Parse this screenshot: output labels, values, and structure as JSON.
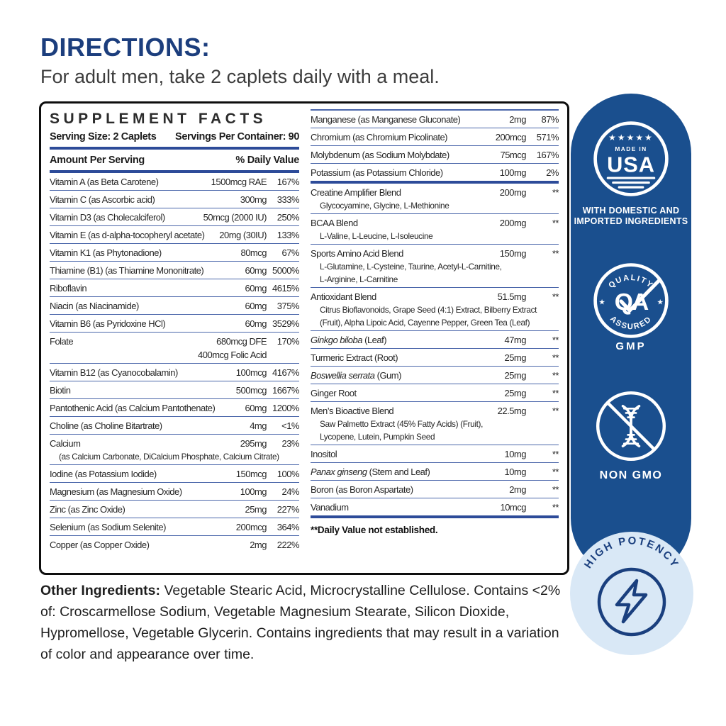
{
  "directions": {
    "title": "DIRECTIONS:",
    "text": "For adult men, take 2 caplets daily with a meal."
  },
  "facts": {
    "title": "SUPPLEMENT FACTS",
    "serving_size": "Serving Size: 2 Caplets",
    "servings_per_container": "Servings Per Container: 90",
    "col_amount": "Amount Per Serving",
    "col_dv": "% Daily Value",
    "footnote": "**Daily Value not established.",
    "left_rows": [
      {
        "label": "Vitamin A (as Beta Carotene)",
        "amount": "1500mcg RAE",
        "dv": "167%"
      },
      {
        "label": "Vitamin C (as Ascorbic acid)",
        "amount": "300mg",
        "dv": "333%"
      },
      {
        "label": "Vitamin D3 (as Cholecalciferol)",
        "amount": "50mcg (2000 IU)",
        "dv": "250%"
      },
      {
        "label": "Vitamin E (as d-alpha-tocopheryl acetate)",
        "amount": "20mg (30IU)",
        "dv": "133%"
      },
      {
        "label": "Vitamin K1 (as Phytonadione)",
        "amount": "80mcg",
        "dv": "67%"
      },
      {
        "label": "Thiamine (B1) (as Thiamine Mononitrate)",
        "amount": "60mg",
        "dv": "5000%"
      },
      {
        "label": "Riboflavin",
        "amount": "60mg",
        "dv": "4615%"
      },
      {
        "label": "Niacin (as Niacinamide)",
        "amount": "60mg",
        "dv": "375%"
      },
      {
        "label": "Vitamin B6 (as Pyridoxine HCl)",
        "amount": "60mg",
        "dv": "3529%"
      },
      {
        "label": "Folate",
        "amount": "680mcg DFE",
        "amount2": "400mcg Folic Acid",
        "dv": "170%"
      },
      {
        "label": "Vitamin B12 (as Cyanocobalamin)",
        "amount": "100mcg",
        "dv": "4167%"
      },
      {
        "label": "Biotin",
        "amount": "500mcg",
        "dv": "1667%"
      },
      {
        "label": "Pantothenic Acid (as Calcium Pantothenate)",
        "amount": "60mg",
        "dv": "1200%"
      },
      {
        "label": "Choline (as Choline Bitartrate)",
        "amount": "4mg",
        "dv": "<1%"
      },
      {
        "label": "Calcium",
        "sub": [
          "(as Calcium Carbonate, DiCalcium Phosphate, Calcium Citrate)"
        ],
        "amount": "295mg",
        "dv": "23%"
      },
      {
        "label": "Iodine (as Potassium Iodide)",
        "amount": "150mcg",
        "dv": "100%"
      },
      {
        "label": "Magnesium (as Magnesium Oxide)",
        "amount": "100mg",
        "dv": "24%"
      },
      {
        "label": "Zinc (as Zinc Oxide)",
        "amount": "25mg",
        "dv": "227%"
      },
      {
        "label": "Selenium (as Sodium Selenite)",
        "amount": "200mcg",
        "dv": "364%"
      },
      {
        "label": "Copper (as Copper Oxide)",
        "amount": "2mg",
        "dv": "222%"
      }
    ],
    "right_rows": [
      {
        "label": "Manganese (as Manganese Gluconate)",
        "amount": "2mg",
        "dv": "87%"
      },
      {
        "label": "Chromium (as Chromium Picolinate)",
        "amount": "200mcg",
        "dv": "571%"
      },
      {
        "label": "Molybdenum (as Sodium Molybdate)",
        "amount": "75mcg",
        "dv": "167%"
      },
      {
        "label": "Potassium (as Potassium Chloride)",
        "amount": "100mg",
        "dv": "2%",
        "thick_after": true
      },
      {
        "label": "Creatine Amplifier Blend",
        "amount": "200mg",
        "dv": "**",
        "sub": [
          "Glycocyamine, Glycine, L-Methionine"
        ]
      },
      {
        "label": "BCAA Blend",
        "amount": "200mg",
        "dv": "**",
        "sub": [
          "L-Valine, L-Leucine, L-Isoleucine"
        ]
      },
      {
        "label": "Sports Amino Acid Blend",
        "amount": "150mg",
        "dv": "**",
        "sub": [
          "L-Glutamine, L-Cysteine, Taurine, Acetyl-L-Carnitine,",
          "L-Arginine, L-Carnitine"
        ]
      },
      {
        "label": "Antioxidant Blend",
        "amount": "51.5mg",
        "dv": "**",
        "sub": [
          "Citrus Bioflavonoids, Grape Seed (4:1) Extract, Bilberry Extract",
          "(Fruit), Alpha Lipoic Acid, Cayenne Pepper, Green Tea (Leaf)"
        ]
      },
      {
        "label_italic": "Ginkgo biloba",
        "label": " (Leaf)",
        "amount": "47mg",
        "dv": "**"
      },
      {
        "label": "Turmeric Extract (Root)",
        "amount": "25mg",
        "dv": "**"
      },
      {
        "label_italic": "Boswellia serrata",
        "label": " (Gum)",
        "amount": "25mg",
        "dv": "**"
      },
      {
        "label": "Ginger Root",
        "amount": "25mg",
        "dv": "**"
      },
      {
        "label": "Men’s Bioactive Blend",
        "amount": "22.5mg",
        "dv": "**",
        "sub": [
          "Saw Palmetto Extract (45% Fatty Acids) (Fruit),",
          "Lycopene, Lutein, Pumpkin Seed"
        ]
      },
      {
        "label": "Inositol",
        "amount": "10mg",
        "dv": "**"
      },
      {
        "label_italic": "Panax ginseng",
        "label": " (Stem and Leaf)",
        "amount": "10mg",
        "dv": "**"
      },
      {
        "label": "Boron (as Boron Aspartate)",
        "amount": "2mg",
        "dv": "**"
      },
      {
        "label": "Vanadium",
        "amount": "10mcg",
        "dv": "**",
        "thick_after": true
      }
    ]
  },
  "other_ingredients": {
    "label": "Other Ingredients:",
    "text": " Vegetable Stearic Acid, Microcrystalline Cellulose. Contains <2% of: Croscarmellose Sodium, Vegetable Magnesium Stearate, Silicon Dioxide, Hypromellose, Vegetable Glycerin. Contains ingredients that may result in a variation of color and appearance over time."
  },
  "badges": {
    "usa": {
      "stars": "★★★★★",
      "made_in": "MADE IN",
      "usa": "USA",
      "caption_line1": "WITH DOMESTIC AND",
      "caption_line2": "IMPORTED INGREDIENTS"
    },
    "qa": {
      "arc_top": "QUALITY",
      "arc_bottom": "ASSURED",
      "letters": "QA",
      "star_left": "★",
      "star_right": "★",
      "caption": "GMP"
    },
    "non_gmo": {
      "caption": "NON GMO"
    },
    "high_potency": {
      "arc": "HIGH POTENCY"
    }
  },
  "colors": {
    "directions_blue": "#1c3e7d",
    "rule_blue": "#2d4b99",
    "row_line_blue": "#4a66aa",
    "capsule_blue": "#1a4f8e",
    "light_circle_blue": "#d9e8f6",
    "icon_navy": "#1a3f7e",
    "body_text": "#262626"
  }
}
